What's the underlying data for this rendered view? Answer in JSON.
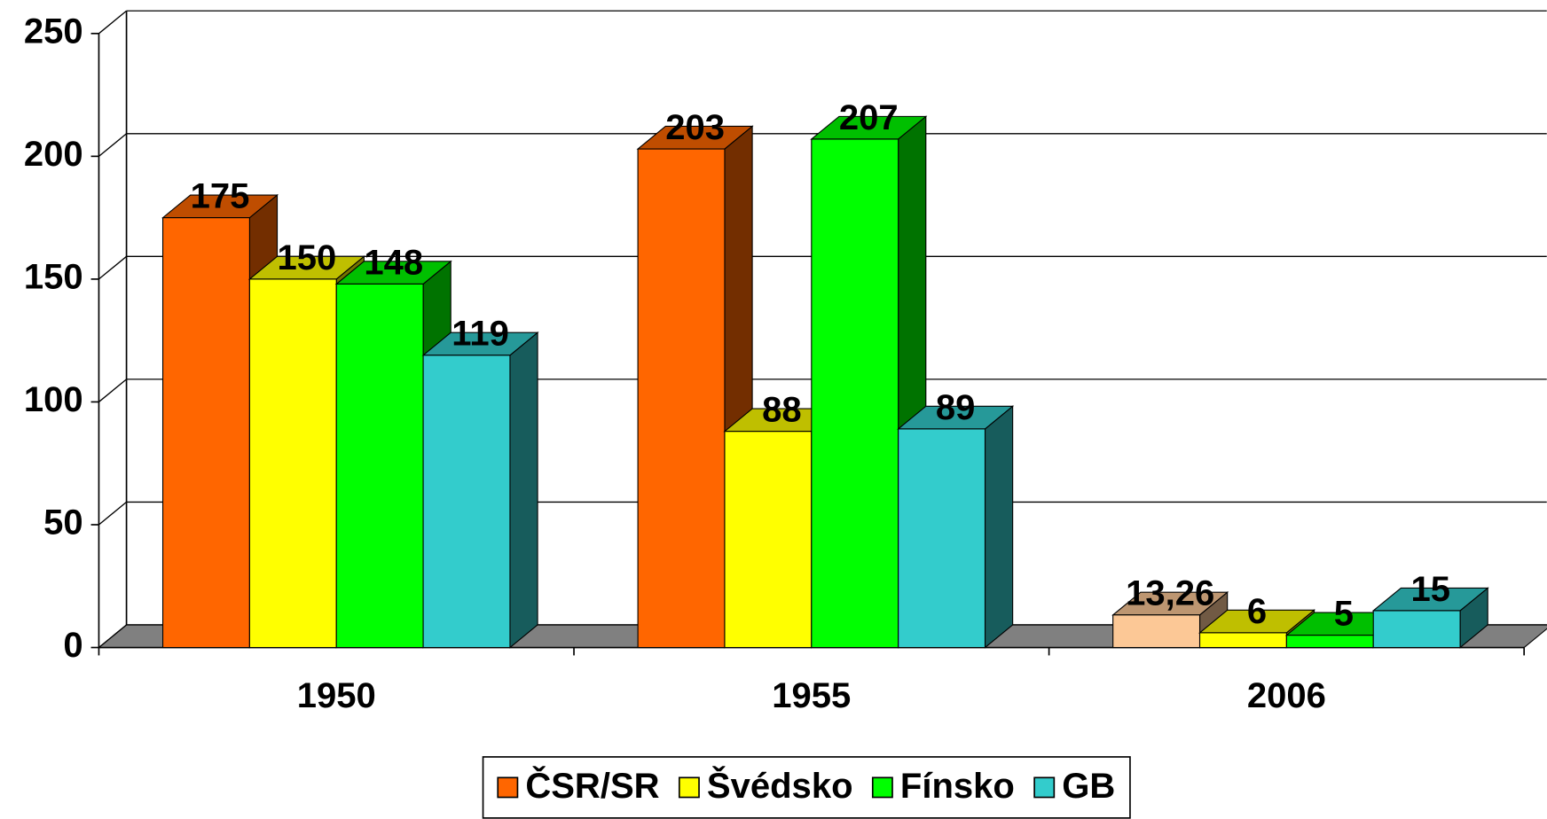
{
  "chart_data": {
    "type": "bar3d",
    "categories": [
      "1950",
      "1955",
      "2006"
    ],
    "series": [
      {
        "name": "ČSR/SR",
        "color": "#ff6600",
        "colors": [
          "#ff6600",
          "#ff6600",
          "#fcc896"
        ],
        "values": [
          175,
          203,
          13.26
        ],
        "value_labels": [
          "175",
          "203",
          "13,26"
        ]
      },
      {
        "name": "Švédsko",
        "color": "#ffff00",
        "values": [
          150,
          88,
          6
        ]
      },
      {
        "name": "Fínsko",
        "color": "#00ff00",
        "values": [
          148,
          207,
          5
        ]
      },
      {
        "name": "GB",
        "color": "#33cccc",
        "values": [
          119,
          89,
          15
        ]
      }
    ],
    "ylim": [
      0,
      250
    ],
    "yticks": [
      0,
      50,
      100,
      150,
      200,
      250
    ],
    "grid": true,
    "legend": "bottom"
  }
}
